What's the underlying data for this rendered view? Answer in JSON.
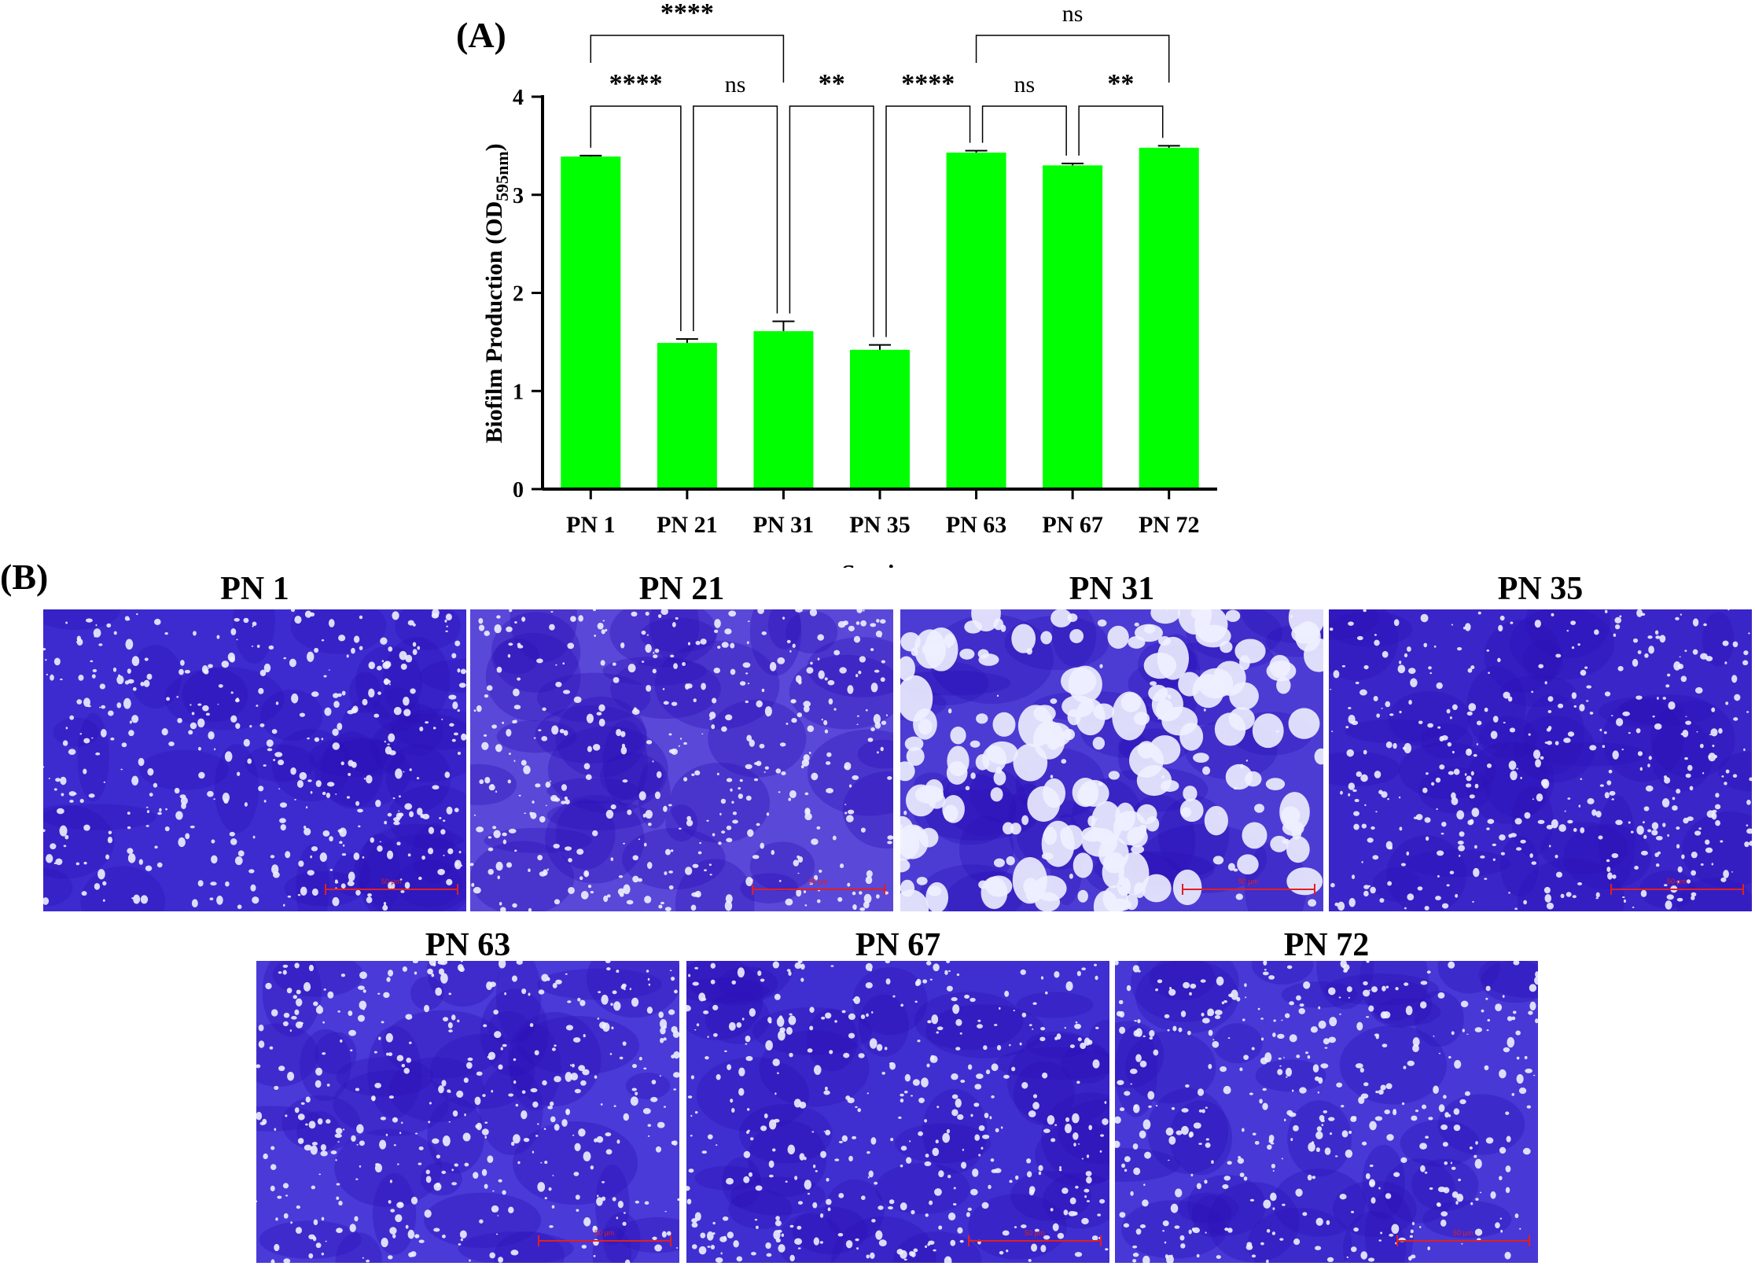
{
  "panels": {
    "a_label": "(A)",
    "b_label": "(B)"
  },
  "chart_data": {
    "type": "bar",
    "categories": [
      "PN 1",
      "PN 21",
      "PN 31",
      "PN 35",
      "PN 63",
      "PN 67",
      "PN 72"
    ],
    "values": [
      3.39,
      1.49,
      1.61,
      1.42,
      3.43,
      3.3,
      3.48
    ],
    "errors": [
      0.01,
      0.04,
      0.1,
      0.05,
      0.02,
      0.02,
      0.02
    ],
    "ylim": [
      0,
      4
    ],
    "yticks": [
      "0",
      "1",
      "2",
      "3",
      "4"
    ],
    "ylabel_main": "Biofilm Production (OD",
    "ylabel_sub": "595nm",
    "ylabel_end": ")",
    "xlabel": "Strains",
    "bar_color": "#00ff00",
    "significance": [
      {
        "from": 0,
        "to": 1,
        "label": "****",
        "level": 1
      },
      {
        "from": 1,
        "to": 2,
        "label": "ns",
        "level": 1
      },
      {
        "from": 2,
        "to": 3,
        "label": "**",
        "level": 1
      },
      {
        "from": 3,
        "to": 4,
        "label": "****",
        "level": 1
      },
      {
        "from": 4,
        "to": 5,
        "label": "ns",
        "level": 1
      },
      {
        "from": 5,
        "to": 6,
        "label": "**",
        "level": 1
      },
      {
        "from": 0,
        "to": 2,
        "label": "****",
        "level": 2
      },
      {
        "from": 4,
        "to": 6,
        "label": "ns",
        "level": 2
      }
    ]
  },
  "micrographs": [
    {
      "title": "PN 1",
      "scale_label": "50 μm",
      "stain_color": "#3d2bd0"
    },
    {
      "title": "PN 21",
      "scale_label": "50 μm",
      "stain_color": "#5a48d8"
    },
    {
      "title": "PN 31",
      "scale_label": "50 μm",
      "stain_color": "#4c3cd4"
    },
    {
      "title": "PN 35",
      "scale_label": "50 μm",
      "stain_color": "#3a25c8"
    },
    {
      "title": "PN 63",
      "scale_label": "50 μm",
      "stain_color": "#4a3ad8"
    },
    {
      "title": "PN 67",
      "scale_label": "50 μm",
      "stain_color": "#3f2fd0"
    },
    {
      "title": "PN 72",
      "scale_label": "50 μm",
      "stain_color": "#4838d6"
    }
  ]
}
